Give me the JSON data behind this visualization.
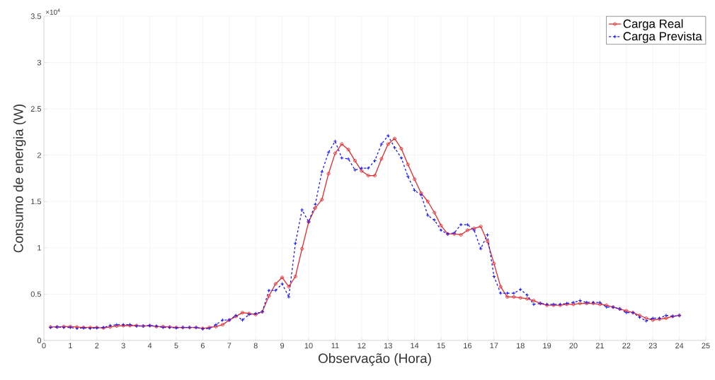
{
  "chart_data": {
    "type": "line",
    "xlabel": "Observação (Hora)",
    "ylabel": "Consumo de energia (W)",
    "annotations": [
      "×10$^{4}$"
    ],
    "x": [
      0.25,
      0.5,
      0.75,
      1,
      1.25,
      1.5,
      1.75,
      2,
      2.25,
      2.5,
      2.75,
      3,
      3.25,
      3.5,
      3.75,
      4,
      4.25,
      4.5,
      4.75,
      5,
      5.25,
      5.5,
      5.75,
      6,
      6.25,
      6.5,
      6.75,
      7,
      7.25,
      7.5,
      7.75,
      8,
      8.25,
      8.5,
      8.75,
      9,
      9.25,
      9.5,
      9.75,
      10,
      10.25,
      10.5,
      10.75,
      11,
      11.25,
      11.5,
      11.75,
      12,
      12.25,
      12.5,
      12.75,
      13,
      13.25,
      13.5,
      13.75,
      14,
      14.25,
      14.5,
      14.75,
      15,
      15.25,
      15.5,
      15.75,
      16,
      16.25,
      16.5,
      16.75,
      17,
      17.25,
      17.5,
      17.75,
      18,
      18.25,
      18.5,
      18.75,
      19,
      19.25,
      19.5,
      19.75,
      20,
      20.25,
      20.5,
      20.75,
      21,
      21.25,
      21.5,
      21.75,
      22,
      22.25,
      22.5,
      22.75,
      23,
      23.25,
      23.5,
      23.75,
      24
    ],
    "series": [
      {
        "name": "Carga Real",
        "color": "#e8282b",
        "marker": "circle",
        "line_style": "solid",
        "values": [
          0.145,
          0.145,
          0.15,
          0.15,
          0.145,
          0.14,
          0.14,
          0.14,
          0.135,
          0.145,
          0.155,
          0.16,
          0.16,
          0.16,
          0.155,
          0.16,
          0.15,
          0.15,
          0.145,
          0.14,
          0.14,
          0.14,
          0.14,
          0.13,
          0.14,
          0.15,
          0.17,
          0.22,
          0.26,
          0.3,
          0.29,
          0.28,
          0.31,
          0.48,
          0.61,
          0.68,
          0.58,
          0.69,
          0.99,
          1.28,
          1.43,
          1.52,
          1.8,
          2.02,
          2.12,
          2.06,
          1.94,
          1.83,
          1.78,
          1.78,
          1.96,
          2.12,
          2.18,
          2.07,
          1.9,
          1.74,
          1.59,
          1.5,
          1.38,
          1.24,
          1.15,
          1.15,
          1.14,
          1.19,
          1.21,
          1.23,
          1.07,
          0.83,
          0.58,
          0.47,
          0.47,
          0.46,
          0.45,
          0.43,
          0.4,
          0.38,
          0.38,
          0.38,
          0.39,
          0.39,
          0.4,
          0.4,
          0.4,
          0.39,
          0.38,
          0.36,
          0.34,
          0.32,
          0.3,
          0.27,
          0.24,
          0.22,
          0.23,
          0.24,
          0.26,
          0.27
        ]
      },
      {
        "name": "Carga Prevista",
        "color": "#1a1aff",
        "marker": "cross",
        "line_style": "dashed",
        "values": [
          0.14,
          0.145,
          0.14,
          0.14,
          0.13,
          0.135,
          0.13,
          0.135,
          0.14,
          0.16,
          0.17,
          0.17,
          0.17,
          0.155,
          0.155,
          0.16,
          0.155,
          0.14,
          0.14,
          0.135,
          0.14,
          0.14,
          0.14,
          0.125,
          0.13,
          0.17,
          0.22,
          0.22,
          0.27,
          0.22,
          0.28,
          0.29,
          0.31,
          0.54,
          0.54,
          0.61,
          0.47,
          1.05,
          1.41,
          1.28,
          1.47,
          1.82,
          2.03,
          2.15,
          1.97,
          1.96,
          1.84,
          1.86,
          1.86,
          1.94,
          2.12,
          2.21,
          2.08,
          1.97,
          1.77,
          1.62,
          1.57,
          1.35,
          1.3,
          1.19,
          1.15,
          1.16,
          1.25,
          1.25,
          1.19,
          0.99,
          1.14,
          0.69,
          0.51,
          0.51,
          0.51,
          0.55,
          0.49,
          0.39,
          0.4,
          0.39,
          0.39,
          0.39,
          0.4,
          0.41,
          0.43,
          0.41,
          0.41,
          0.41,
          0.36,
          0.36,
          0.34,
          0.3,
          0.3,
          0.25,
          0.21,
          0.24,
          0.24,
          0.27,
          0.26,
          0.27
        ]
      }
    ],
    "xlim": [
      0,
      25
    ],
    "xticks": [
      0,
      1,
      2,
      3,
      4,
      5,
      6,
      7,
      8,
      9,
      10,
      11,
      12,
      13,
      14,
      15,
      16,
      17,
      18,
      19,
      20,
      21,
      22,
      23,
      24,
      25
    ],
    "ylim": [
      0,
      3.5
    ],
    "yticks": [
      0,
      0.5,
      1,
      1.5,
      2,
      2.5,
      3,
      3.5
    ],
    "grid": true,
    "legend": "top right"
  }
}
